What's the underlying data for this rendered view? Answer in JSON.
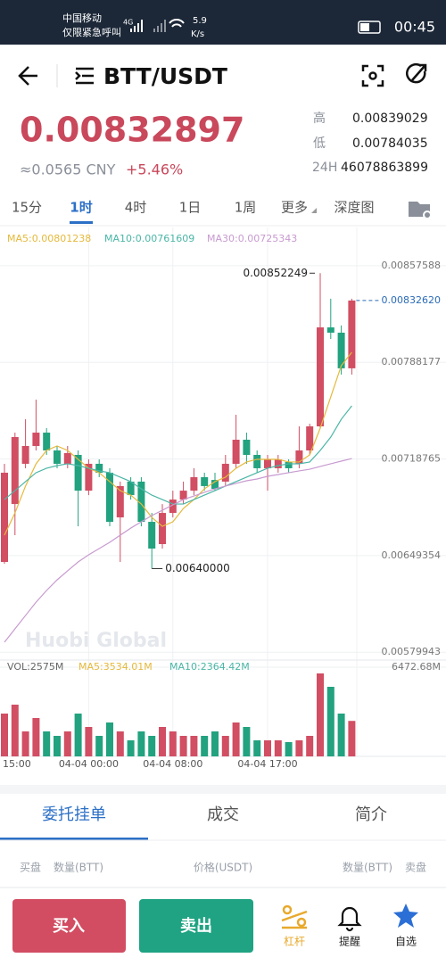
{
  "status_bar": {
    "carrier": "中国移动",
    "emergency": "仅限紧急呼叫",
    "network": "4G",
    "speed": "5.9",
    "speed_unit": "K/s",
    "time": "00:45"
  },
  "header": {
    "pair": "BTT/USDT"
  },
  "ticker": {
    "price": "0.00832897",
    "cny": "≈0.0565 CNY",
    "change": "+5.46%",
    "high_label": "高",
    "high": "0.00839029",
    "low_label": "低",
    "low": "0.00784035",
    "vol_label": "24H",
    "vol": "46078863899"
  },
  "tabs": [
    "15分",
    "1时",
    "4时",
    "1日",
    "1周",
    "更多",
    "深度图"
  ],
  "chart_data": {
    "type": "candlestick",
    "ma_labels": [
      "MA5:0.00801238",
      "MA10:0.00761609",
      "MA30:0.00725343"
    ],
    "watermark": "Huobi Global",
    "categories": [
      "15:00",
      null,
      null,
      null,
      null,
      null,
      null,
      null,
      "04-04 00:00",
      null,
      null,
      null,
      null,
      null,
      null,
      null,
      "04-04 08:00",
      null,
      null,
      null,
      null,
      null,
      null,
      null,
      null,
      "04-04 17:00",
      null,
      null,
      null,
      null,
      null,
      null,
      null,
      null
    ],
    "open": [
      0.006448,
      0.006864,
      0.007153,
      0.007281,
      0.007377,
      0.007249,
      0.007153,
      0.007217,
      0.00696,
      0.007153,
      0.007089,
      0.006768,
      0.007025,
      0.007025,
      0.006736,
      0.006576,
      0.0068,
      0.006896,
      0.00696,
      0.007057,
      0.007037,
      0.007025,
      0.007153,
      0.007326,
      0.007217,
      0.007121,
      0.007121,
      0.007166,
      0.007153,
      0.007249,
      0.007422,
      0.008133,
      0.008095,
      0.007839
    ],
    "high": [
      0.007153,
      0.007377,
      0.007473,
      0.007614,
      0.007409,
      0.007281,
      0.007281,
      0.007249,
      0.007185,
      0.007185,
      0.007121,
      0.007025,
      0.007057,
      0.007057,
      0.0068,
      0.006864,
      0.00696,
      0.007025,
      0.007121,
      0.007089,
      0.007089,
      0.007217,
      0.007505,
      0.007377,
      0.007249,
      0.007217,
      0.007217,
      0.007185,
      0.007422,
      0.007441,
      0.00852249,
      0.008339,
      0.008147,
      0.008339
    ],
    "low": [
      0.006435,
      0.00664,
      0.007121,
      0.007249,
      0.007217,
      0.007121,
      0.007121,
      0.006704,
      0.006928,
      0.007057,
      0.006704,
      0.006448,
      0.006896,
      0.006704,
      0.0064,
      0.006544,
      0.006768,
      0.006864,
      0.006928,
      0.00696,
      0.00696,
      0.006993,
      0.007121,
      0.007153,
      0.007089,
      0.00696,
      0.007089,
      0.007089,
      0.007121,
      0.007217,
      0.007409,
      0.00805,
      0.007794,
      0.007794
    ],
    "close": [
      0.007089,
      0.007345,
      0.007281,
      0.007377,
      0.007249,
      0.007153,
      0.00723,
      0.00696,
      0.007153,
      0.007089,
      0.006736,
      0.006993,
      0.006928,
      0.006736,
      0.006544,
      0.0068,
      0.006896,
      0.00696,
      0.007057,
      0.006993,
      0.006973,
      0.007153,
      0.007326,
      0.007217,
      0.007121,
      0.007185,
      0.007185,
      0.007121,
      0.007249,
      0.007422,
      0.008133,
      0.008095,
      0.007839,
      0.0083262
    ],
    "ma": [
      {
        "name": "MA5",
        "color": "#e5b93b",
        "values": [
          0.00664,
          0.0068,
          0.006993,
          0.007153,
          0.007249,
          0.007281,
          0.007249,
          0.007185,
          0.007121,
          0.007089,
          0.007025,
          0.00696,
          0.006928,
          0.006864,
          0.006768,
          0.006704,
          0.006736,
          0.006832,
          0.006896,
          0.006973,
          0.007025,
          0.007057,
          0.007121,
          0.007166,
          0.007185,
          0.007185,
          0.007185,
          0.007166,
          0.007166,
          0.007217,
          0.007409,
          0.007634,
          0.007858,
          0.007954
        ]
      },
      {
        "name": "MA10",
        "color": "#4ab6a6",
        "values": [
          0.006896,
          0.00696,
          0.007025,
          0.007089,
          0.007121,
          0.00714,
          0.007153,
          0.00714,
          0.007121,
          0.007102,
          0.007089,
          0.007057,
          0.007025,
          0.006973,
          0.006928,
          0.006896,
          0.006864,
          0.006864,
          0.006896,
          0.006928,
          0.00696,
          0.006993,
          0.007025,
          0.007057,
          0.007089,
          0.007121,
          0.00714,
          0.007153,
          0.007153,
          0.007166,
          0.007249,
          0.007345,
          0.007473,
          0.007569
        ]
      },
      {
        "name": "MA30",
        "color": "#c89ad0",
        "values": [
          0.005871,
          0.005967,
          0.006063,
          0.006159,
          0.006243,
          0.006319,
          0.006384,
          0.006448,
          0.006499,
          0.006544,
          0.006589,
          0.00664,
          0.006691,
          0.006736,
          0.006781,
          0.006819,
          0.006858,
          0.006896,
          0.006922,
          0.006948,
          0.006973,
          0.006993,
          0.007012,
          0.007031,
          0.007044,
          0.007063,
          0.007076,
          0.007089,
          0.007102,
          0.007114,
          0.007134,
          0.007153,
          0.007172,
          0.007191
        ]
      }
    ],
    "ylim": [
      0.005743,
      0.008851
    ],
    "yticks": [
      0.00857588,
      0.00788177,
      0.00718765,
      0.00649354,
      0.00579943
    ],
    "high_mark": 0.00852249,
    "low_mark": {
      "value": 0.0064,
      "label": "0.00640000"
    },
    "last_price": {
      "value": 0.0083262,
      "label": "0.00832620"
    },
    "volume_labels": [
      "VOL:2575M",
      "MA5:3534.01M",
      "MA10:2364.42M"
    ],
    "volume": [
      3107,
      3754,
      1812,
      2783,
      1812,
      1489,
      1812,
      3107,
      2136,
      1489,
      2460,
      1812,
      1165,
      1812,
      1489,
      2136,
      1812,
      1489,
      1489,
      1489,
      1812,
      1489,
      2460,
      2136,
      1165,
      1165,
      1165,
      1036,
      1165,
      1489,
      6020,
      5049,
      3107,
      2575
    ],
    "volume_ylim": [
      0,
      6472.68
    ],
    "volume_ticks": [
      {
        "value": 6472.68,
        "label": "6472.68M"
      }
    ],
    "up_color": "#d14e63",
    "down_color": "#22a27f"
  },
  "bottom_tabs": [
    "委托挂单",
    "成交",
    "简介"
  ],
  "order_book_header": [
    "买盘",
    "数量(BTT)",
    "价格(USDT)",
    "数量(BTT)",
    "卖盘"
  ],
  "actions": {
    "buy": "买入",
    "sell": "卖出",
    "margin": "杠杆",
    "alert": "提醒",
    "favorite": "自选"
  }
}
